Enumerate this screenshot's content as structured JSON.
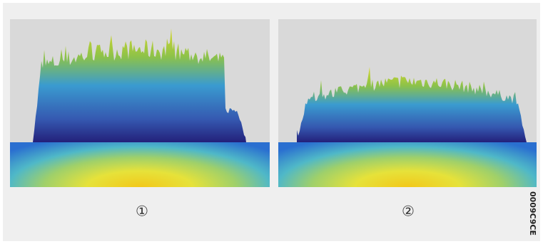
{
  "panels": [
    {
      "label": "①"
    },
    {
      "label": "②"
    }
  ],
  "figure_id": "0009C9CE"
}
